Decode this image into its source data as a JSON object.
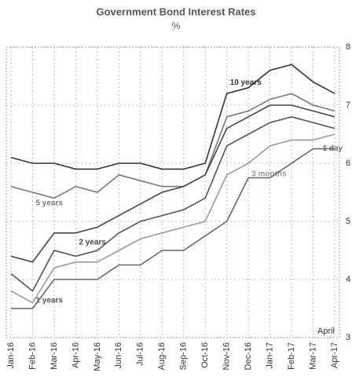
{
  "chart_data": {
    "type": "line",
    "title": "Government Bond Interest Rates",
    "subtitle": "%",
    "annotation": "April",
    "categories": [
      "Jan-16",
      "Feb-16",
      "Mar-16",
      "Apr-16",
      "May-16",
      "Jun-16",
      "Jul-16",
      "Aug-16",
      "Sep-16",
      "Oct-16",
      "Nov-16",
      "Dec-16",
      "Jan-17",
      "Feb-17",
      "Mar-17",
      "Apr-17"
    ],
    "series": [
      {
        "name": "10 years",
        "color": "#333333",
        "values": [
          6.1,
          6.0,
          6.0,
          5.9,
          5.9,
          6.0,
          6.0,
          5.9,
          5.9,
          6.0,
          7.2,
          7.3,
          7.6,
          7.7,
          7.4,
          7.2
        ]
      },
      {
        "name": "5 years",
        "color": "#777777",
        "values": [
          5.6,
          5.5,
          5.4,
          5.6,
          5.5,
          5.8,
          5.7,
          5.6,
          5.6,
          5.8,
          6.8,
          6.9,
          7.1,
          7.2,
          7.0,
          6.9
        ]
      },
      {
        "name": "2 years",
        "color": "#444444",
        "values": [
          4.4,
          4.3,
          4.8,
          4.8,
          4.9,
          5.1,
          5.3,
          5.5,
          5.6,
          5.8,
          6.6,
          6.8,
          7.0,
          7.0,
          6.9,
          6.8
        ]
      },
      {
        "name": "1 years",
        "color": "#555555",
        "values": [
          4.1,
          3.8,
          4.5,
          4.4,
          4.5,
          4.8,
          5.0,
          5.1,
          5.2,
          5.4,
          6.3,
          6.5,
          6.7,
          6.8,
          6.7,
          6.6
        ]
      },
      {
        "name": "3 months",
        "color": "#999999",
        "values": [
          3.8,
          3.6,
          4.2,
          4.3,
          4.3,
          4.5,
          4.7,
          4.8,
          4.9,
          5.0,
          5.8,
          6.0,
          6.3,
          6.4,
          6.4,
          6.5
        ]
      },
      {
        "name": "1 day",
        "color": "#666666",
        "values": [
          3.5,
          3.5,
          4.0,
          4.0,
          4.0,
          4.25,
          4.25,
          4.5,
          4.5,
          4.75,
          5.0,
          5.75,
          5.75,
          6.0,
          6.25,
          6.25
        ]
      }
    ],
    "ylim": [
      3,
      8
    ],
    "yticks": [
      3,
      4,
      5,
      6,
      7,
      8
    ],
    "grid": true
  }
}
